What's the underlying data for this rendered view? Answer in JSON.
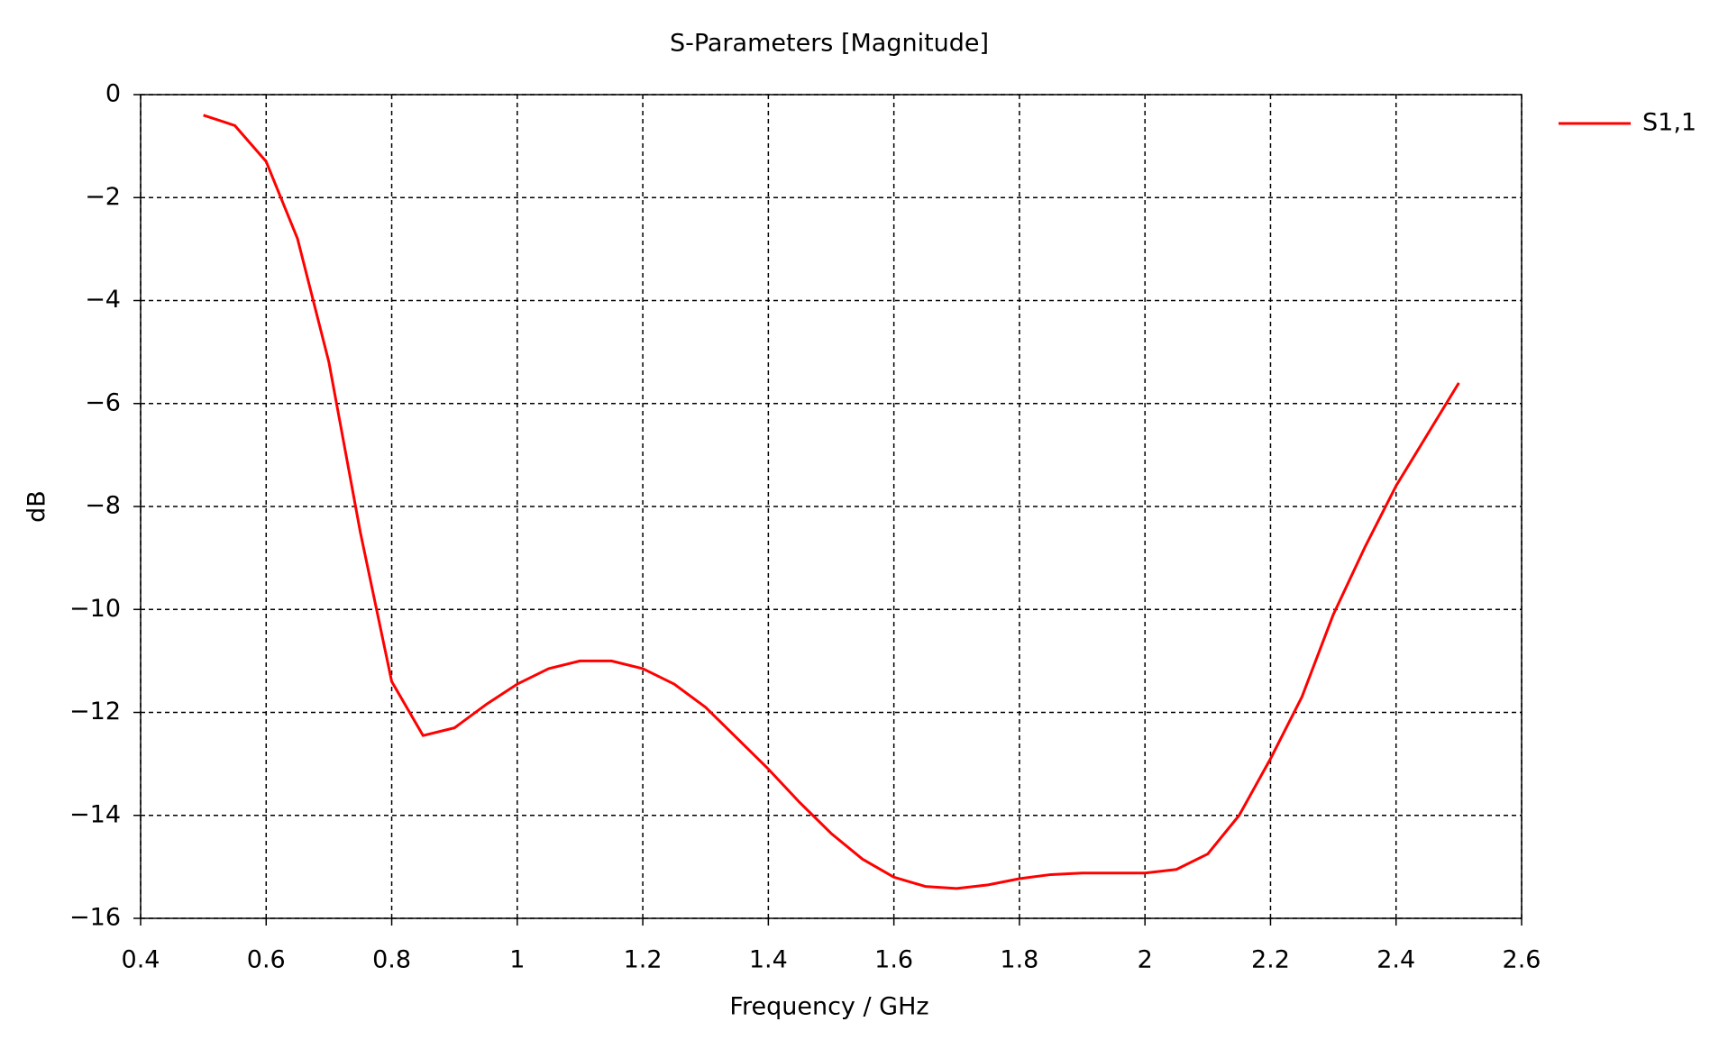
{
  "chart_data": {
    "type": "line",
    "title": "S-Parameters [Magnitude]",
    "x_label": "Frequency / GHz",
    "y_label": "dB",
    "x": [
      0.5,
      0.55,
      0.6,
      0.65,
      0.7,
      0.75,
      0.8,
      0.85,
      0.9,
      0.95,
      1.0,
      1.05,
      1.1,
      1.15,
      1.2,
      1.25,
      1.3,
      1.35,
      1.4,
      1.45,
      1.5,
      1.55,
      1.6,
      1.65,
      1.7,
      1.75,
      1.8,
      1.85,
      1.9,
      1.95,
      2.0,
      2.05,
      2.1,
      2.15,
      2.2,
      2.25,
      2.3,
      2.35,
      2.4,
      2.45,
      2.5
    ],
    "series": [
      {
        "name": "S1,1",
        "color": "#ff0000",
        "values": [
          -0.4,
          -0.6,
          -1.3,
          -2.8,
          -5.2,
          -8.5,
          -11.4,
          -12.45,
          -12.3,
          -11.85,
          -11.45,
          -11.15,
          -11.0,
          -11.0,
          -11.15,
          -11.45,
          -11.9,
          -12.5,
          -13.1,
          -13.75,
          -14.35,
          -14.85,
          -15.2,
          -15.38,
          -15.42,
          -15.35,
          -15.23,
          -15.15,
          -15.12,
          -15.12,
          -15.12,
          -15.05,
          -14.75,
          -14.0,
          -12.9,
          -11.7,
          -10.1,
          -8.8,
          -7.6,
          -6.6,
          -5.6
        ]
      }
    ],
    "xlim": [
      0.4,
      2.6
    ],
    "xticks": [
      0.4,
      0.6,
      0.8,
      1,
      1.2,
      1.4,
      1.6,
      1.8,
      2,
      2.2,
      2.4,
      2.6
    ],
    "ylim": [
      -16,
      0
    ],
    "yticks": [
      {
        "value": -16,
        "label": "−16"
      },
      {
        "value": -14,
        "label": "−14"
      },
      {
        "value": -12,
        "label": "−12"
      },
      {
        "value": -10,
        "label": "−10"
      },
      {
        "value": -8,
        "label": "−8"
      },
      {
        "value": -6,
        "label": "−6"
      },
      {
        "value": -4,
        "label": "−4"
      },
      {
        "value": -2,
        "label": "−2"
      },
      0
    ],
    "grid": true,
    "legend": "outside-top-right"
  }
}
